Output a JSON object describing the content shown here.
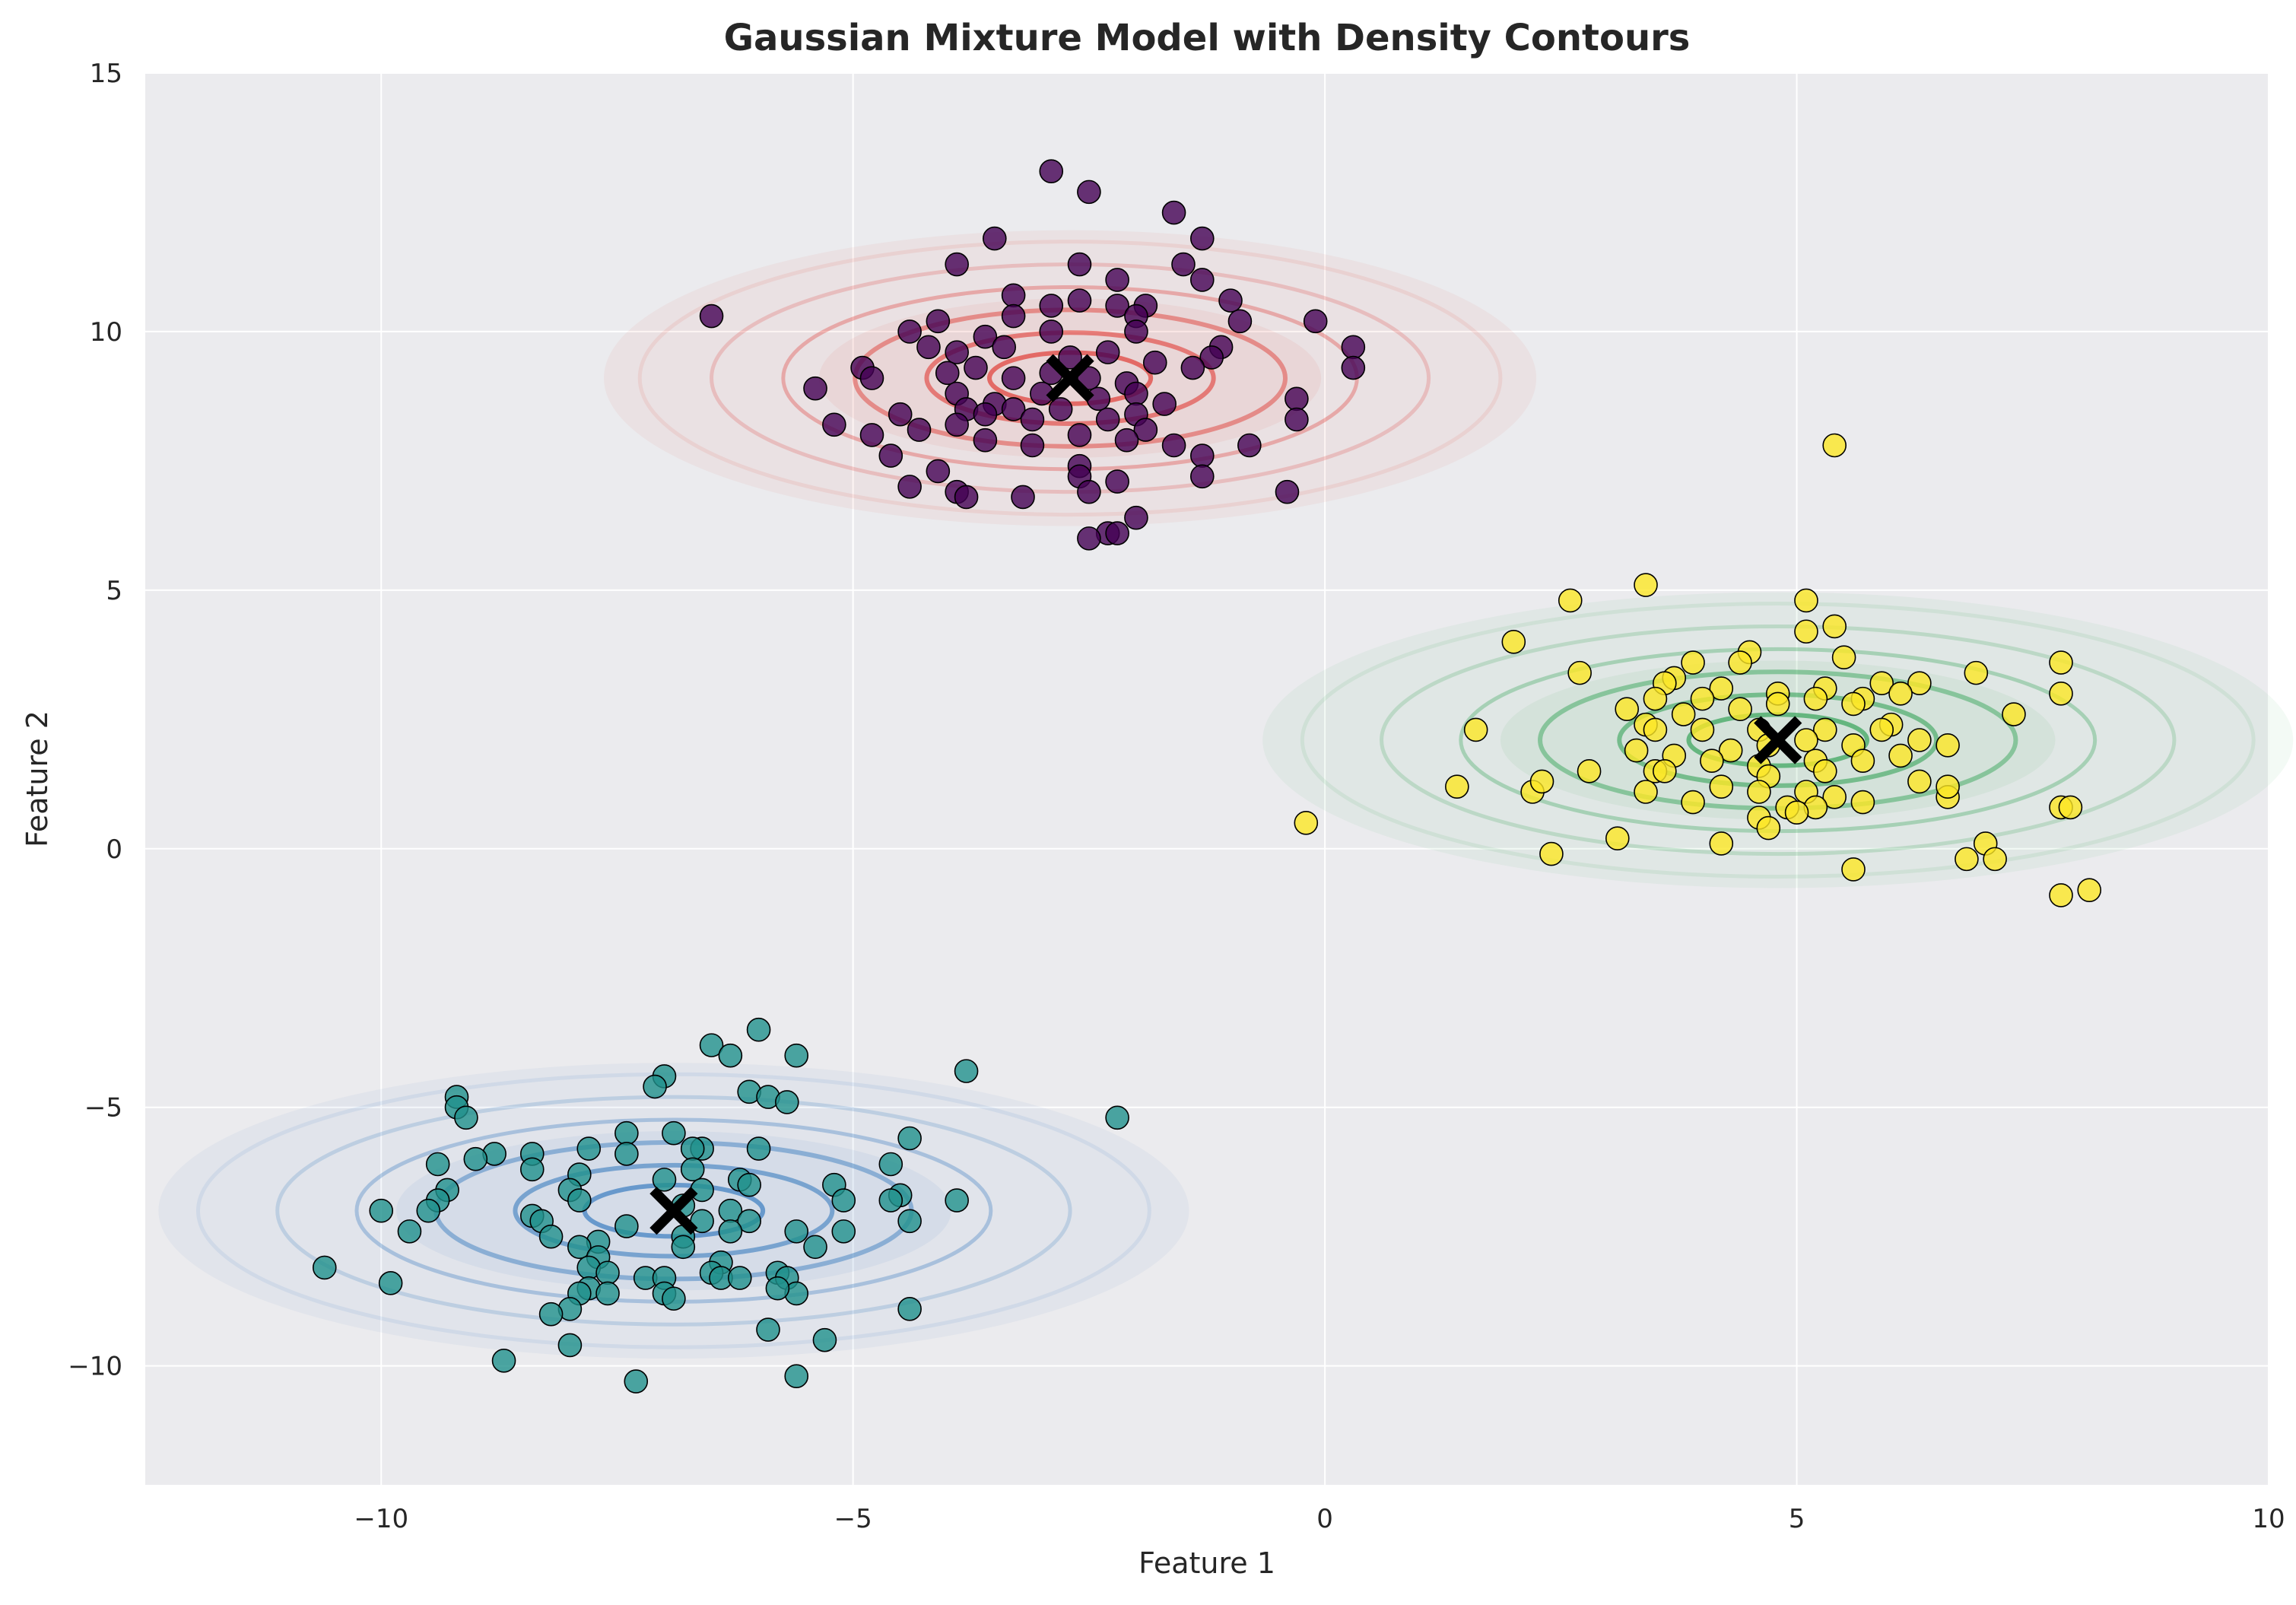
{
  "chart_data": {
    "type": "scatter",
    "title": "Gaussian Mixture Model with Density Contours",
    "xlabel": "Feature 1",
    "ylabel": "Feature 2",
    "xlim": [
      -12.5,
      10
    ],
    "ylim": [
      -12.3,
      15
    ],
    "xticks": [
      -10,
      -5,
      0,
      5,
      10
    ],
    "xtick_labels": [
      "−10",
      "−5",
      "0",
      "5",
      "10"
    ],
    "yticks": [
      -10,
      -5,
      0,
      5,
      10,
      15
    ],
    "ytick_labels": [
      "−10",
      "−5",
      "0",
      "5",
      "10",
      "15"
    ],
    "grid": true,
    "legend": "none",
    "colors": {
      "plot_background": "#ebebee",
      "cluster_purple": "#440154",
      "cluster_teal": "#21918c",
      "cluster_yellow": "#fde725",
      "contour_red": "#e0403a",
      "contour_green": "#3aa55c",
      "contour_blue": "#3f7fc0",
      "marker_edge": "#000000",
      "center_marker": "#000000"
    },
    "center_marker_icon": "x-cross",
    "components": [
      {
        "mean": [
          -2.7,
          9.1
        ],
        "sd": [
          1.9,
          1.1
        ],
        "contour_color": "contour_red"
      },
      {
        "mean": [
          4.8,
          2.1
        ],
        "sd": [
          2.1,
          1.1
        ],
        "contour_color": "contour_green"
      },
      {
        "mean": [
          -6.9,
          -7.0
        ],
        "sd": [
          2.1,
          1.1
        ],
        "contour_color": "contour_blue"
      }
    ],
    "series": [
      {
        "color_key": "cluster_purple",
        "center": [
          -2.7,
          9.1
        ],
        "points": [
          [
            -2.9,
            13.1
          ],
          [
            -2.5,
            12.7
          ],
          [
            -1.6,
            12.3
          ],
          [
            -1.3,
            11.8
          ],
          [
            -3.5,
            11.8
          ],
          [
            -3.9,
            11.3
          ],
          [
            -2.6,
            11.3
          ],
          [
            -1.5,
            11.3
          ],
          [
            -2.2,
            11.0
          ],
          [
            -1.3,
            11.0
          ],
          [
            -3.3,
            10.7
          ],
          [
            -2.9,
            10.5
          ],
          [
            -2.6,
            10.6
          ],
          [
            -2.2,
            10.5
          ],
          [
            -1.9,
            10.5
          ],
          [
            -1.0,
            10.6
          ],
          [
            -0.9,
            10.2
          ],
          [
            -6.5,
            10.3
          ],
          [
            -4.1,
            10.2
          ],
          [
            -3.3,
            10.3
          ],
          [
            -2.0,
            10.3
          ],
          [
            -0.1,
            10.2
          ],
          [
            -4.4,
            10.0
          ],
          [
            -3.6,
            9.9
          ],
          [
            -2.9,
            10.0
          ],
          [
            -2.0,
            10.0
          ],
          [
            -1.1,
            9.7
          ],
          [
            0.3,
            9.7
          ],
          [
            -4.2,
            9.7
          ],
          [
            -3.9,
            9.6
          ],
          [
            -3.4,
            9.7
          ],
          [
            -2.7,
            9.5
          ],
          [
            -2.3,
            9.6
          ],
          [
            -1.8,
            9.4
          ],
          [
            -1.2,
            9.5
          ],
          [
            -4.9,
            9.3
          ],
          [
            -4.0,
            9.2
          ],
          [
            -3.7,
            9.3
          ],
          [
            -3.3,
            9.1
          ],
          [
            -2.9,
            9.2
          ],
          [
            -2.5,
            9.1
          ],
          [
            -2.1,
            9.0
          ],
          [
            -1.4,
            9.3
          ],
          [
            0.3,
            9.3
          ],
          [
            -5.4,
            8.9
          ],
          [
            -4.8,
            9.1
          ],
          [
            -3.9,
            8.8
          ],
          [
            -3.5,
            8.6
          ],
          [
            -3.0,
            8.8
          ],
          [
            -2.4,
            8.7
          ],
          [
            -2.0,
            8.8
          ],
          [
            -1.7,
            8.6
          ],
          [
            -3.8,
            8.5
          ],
          [
            -3.3,
            8.5
          ],
          [
            -2.8,
            8.5
          ],
          [
            -2.0,
            8.4
          ],
          [
            -0.3,
            8.7
          ],
          [
            -4.5,
            8.4
          ],
          [
            -3.9,
            8.2
          ],
          [
            -3.6,
            8.4
          ],
          [
            -3.1,
            8.3
          ],
          [
            -2.3,
            8.3
          ],
          [
            -0.3,
            8.3
          ],
          [
            -5.2,
            8.2
          ],
          [
            -4.8,
            8.0
          ],
          [
            -4.3,
            8.1
          ],
          [
            -3.6,
            7.9
          ],
          [
            -3.1,
            7.8
          ],
          [
            -2.6,
            8.0
          ],
          [
            -1.9,
            8.1
          ],
          [
            -2.1,
            7.9
          ],
          [
            -1.6,
            7.8
          ],
          [
            -0.8,
            7.8
          ],
          [
            -4.6,
            7.6
          ],
          [
            -2.6,
            7.4
          ],
          [
            -1.3,
            7.6
          ],
          [
            -4.1,
            7.3
          ],
          [
            -2.6,
            7.2
          ],
          [
            -2.2,
            7.1
          ],
          [
            -1.3,
            7.2
          ],
          [
            -4.4,
            7.0
          ],
          [
            -3.9,
            6.9
          ],
          [
            -3.8,
            6.8
          ],
          [
            -3.2,
            6.8
          ],
          [
            -2.5,
            6.9
          ],
          [
            -0.4,
            6.9
          ],
          [
            -2.0,
            6.4
          ],
          [
            -2.3,
            6.1
          ],
          [
            -2.5,
            6.0
          ],
          [
            -2.2,
            6.1
          ]
        ]
      },
      {
        "color_key": "cluster_yellow",
        "center": [
          4.8,
          2.1
        ],
        "points": [
          [
            5.4,
            7.8
          ],
          [
            3.4,
            5.1
          ],
          [
            2.6,
            4.8
          ],
          [
            5.1,
            4.8
          ],
          [
            5.4,
            4.3
          ],
          [
            5.1,
            4.2
          ],
          [
            2.0,
            4.0
          ],
          [
            4.5,
            3.8
          ],
          [
            4.4,
            3.6
          ],
          [
            3.9,
            3.6
          ],
          [
            5.5,
            3.7
          ],
          [
            7.8,
            3.6
          ],
          [
            2.7,
            3.4
          ],
          [
            3.7,
            3.3
          ],
          [
            3.6,
            3.2
          ],
          [
            4.2,
            3.1
          ],
          [
            5.3,
            3.1
          ],
          [
            5.9,
            3.2
          ],
          [
            6.9,
            3.4
          ],
          [
            6.3,
            3.2
          ],
          [
            7.8,
            3.0
          ],
          [
            3.5,
            2.9
          ],
          [
            4.0,
            2.9
          ],
          [
            4.8,
            3.0
          ],
          [
            5.2,
            2.9
          ],
          [
            5.7,
            2.9
          ],
          [
            6.1,
            3.0
          ],
          [
            3.2,
            2.7
          ],
          [
            3.4,
            2.4
          ],
          [
            3.8,
            2.6
          ],
          [
            4.4,
            2.7
          ],
          [
            4.8,
            2.8
          ],
          [
            5.6,
            2.8
          ],
          [
            7.3,
            2.6
          ],
          [
            1.6,
            2.3
          ],
          [
            3.5,
            2.3
          ],
          [
            4.0,
            2.3
          ],
          [
            4.6,
            2.3
          ],
          [
            5.3,
            2.3
          ],
          [
            6.0,
            2.4
          ],
          [
            5.9,
            2.3
          ],
          [
            3.3,
            1.9
          ],
          [
            3.7,
            1.8
          ],
          [
            4.3,
            1.9
          ],
          [
            4.7,
            2.0
          ],
          [
            5.1,
            2.1
          ],
          [
            5.6,
            2.0
          ],
          [
            6.3,
            2.1
          ],
          [
            6.6,
            2.0
          ],
          [
            3.5,
            1.5
          ],
          [
            4.1,
            1.7
          ],
          [
            4.6,
            1.6
          ],
          [
            5.2,
            1.7
          ],
          [
            5.7,
            1.7
          ],
          [
            6.1,
            1.8
          ],
          [
            2.8,
            1.5
          ],
          [
            3.6,
            1.5
          ],
          [
            4.7,
            1.4
          ],
          [
            5.3,
            1.5
          ],
          [
            6.3,
            1.3
          ],
          [
            1.4,
            1.2
          ],
          [
            2.2,
            1.1
          ],
          [
            2.3,
            1.3
          ],
          [
            3.4,
            1.1
          ],
          [
            4.2,
            1.2
          ],
          [
            4.6,
            1.1
          ],
          [
            5.1,
            1.1
          ],
          [
            5.4,
            1.0
          ],
          [
            6.6,
            1.0
          ],
          [
            6.6,
            1.2
          ],
          [
            3.9,
            0.9
          ],
          [
            4.9,
            0.8
          ],
          [
            5.2,
            0.8
          ],
          [
            5.7,
            0.9
          ],
          [
            4.6,
            0.6
          ],
          [
            4.7,
            0.4
          ],
          [
            5.0,
            0.7
          ],
          [
            7.8,
            0.8
          ],
          [
            7.9,
            0.8
          ],
          [
            -0.2,
            0.5
          ],
          [
            3.1,
            0.2
          ],
          [
            4.2,
            0.1
          ],
          [
            7.0,
            0.1
          ],
          [
            2.4,
            -0.1
          ],
          [
            6.8,
            -0.2
          ],
          [
            7.1,
            -0.2
          ],
          [
            5.6,
            -0.4
          ],
          [
            8.1,
            -0.8
          ],
          [
            7.8,
            -0.9
          ]
        ]
      },
      {
        "color_key": "cluster_teal",
        "center": [
          -6.9,
          -7.0
        ],
        "points": [
          [
            -6.0,
            -3.5
          ],
          [
            -6.5,
            -3.8
          ],
          [
            -6.3,
            -4.0
          ],
          [
            -5.6,
            -4.0
          ],
          [
            -3.8,
            -4.3
          ],
          [
            -7.0,
            -4.4
          ],
          [
            -7.1,
            -4.6
          ],
          [
            -6.1,
            -4.7
          ],
          [
            -5.9,
            -4.8
          ],
          [
            -5.7,
            -4.9
          ],
          [
            -9.2,
            -4.8
          ],
          [
            -9.2,
            -5.0
          ],
          [
            -9.1,
            -5.2
          ],
          [
            -2.2,
            -5.2
          ],
          [
            -7.4,
            -5.5
          ],
          [
            -6.9,
            -5.5
          ],
          [
            -4.4,
            -5.6
          ],
          [
            -6.6,
            -5.8
          ],
          [
            -6.7,
            -5.8
          ],
          [
            -6.0,
            -5.8
          ],
          [
            -7.8,
            -5.8
          ],
          [
            -8.4,
            -5.9
          ],
          [
            -8.8,
            -5.9
          ],
          [
            -7.4,
            -5.9
          ],
          [
            -9.0,
            -6.0
          ],
          [
            -9.4,
            -6.1
          ],
          [
            -8.4,
            -6.2
          ],
          [
            -4.6,
            -6.1
          ],
          [
            -6.7,
            -6.2
          ],
          [
            -7.9,
            -6.3
          ],
          [
            -7.0,
            -6.4
          ],
          [
            -6.2,
            -6.4
          ],
          [
            -6.1,
            -6.5
          ],
          [
            -5.2,
            -6.5
          ],
          [
            -9.3,
            -6.6
          ],
          [
            -8.0,
            -6.6
          ],
          [
            -6.6,
            -6.6
          ],
          [
            -4.5,
            -6.7
          ],
          [
            -9.4,
            -6.8
          ],
          [
            -9.5,
            -7.0
          ],
          [
            -7.9,
            -6.8
          ],
          [
            -6.8,
            -6.9
          ],
          [
            -6.3,
            -7.0
          ],
          [
            -5.1,
            -6.8
          ],
          [
            -4.6,
            -6.8
          ],
          [
            -3.9,
            -6.8
          ],
          [
            -10.0,
            -7.0
          ],
          [
            -8.4,
            -7.1
          ],
          [
            -8.3,
            -7.2
          ],
          [
            -7.4,
            -7.3
          ],
          [
            -6.6,
            -7.2
          ],
          [
            -6.1,
            -7.2
          ],
          [
            -4.4,
            -7.2
          ],
          [
            -9.7,
            -7.4
          ],
          [
            -8.2,
            -7.5
          ],
          [
            -7.7,
            -7.6
          ],
          [
            -6.8,
            -7.5
          ],
          [
            -6.3,
            -7.4
          ],
          [
            -5.6,
            -7.4
          ],
          [
            -5.1,
            -7.4
          ],
          [
            -7.9,
            -7.7
          ],
          [
            -6.8,
            -7.7
          ],
          [
            -5.4,
            -7.7
          ],
          [
            -7.7,
            -7.9
          ],
          [
            -6.4,
            -8.0
          ],
          [
            -5.8,
            -8.2
          ],
          [
            -7.8,
            -8.1
          ],
          [
            -7.6,
            -8.2
          ],
          [
            -7.2,
            -8.3
          ],
          [
            -7.0,
            -8.3
          ],
          [
            -6.5,
            -8.2
          ],
          [
            -6.4,
            -8.3
          ],
          [
            -6.2,
            -8.3
          ],
          [
            -5.7,
            -8.3
          ],
          [
            -10.6,
            -8.1
          ],
          [
            -9.9,
            -8.4
          ],
          [
            -7.8,
            -8.5
          ],
          [
            -7.9,
            -8.6
          ],
          [
            -7.6,
            -8.6
          ],
          [
            -7.0,
            -8.6
          ],
          [
            -6.9,
            -8.7
          ],
          [
            -5.6,
            -8.6
          ],
          [
            -5.8,
            -8.5
          ],
          [
            -8.0,
            -8.9
          ],
          [
            -8.2,
            -9.0
          ],
          [
            -4.4,
            -8.9
          ],
          [
            -5.9,
            -9.3
          ],
          [
            -5.3,
            -9.5
          ],
          [
            -8.0,
            -9.6
          ],
          [
            -8.7,
            -9.9
          ],
          [
            -5.6,
            -10.2
          ],
          [
            -7.3,
            -10.3
          ]
        ]
      }
    ]
  }
}
